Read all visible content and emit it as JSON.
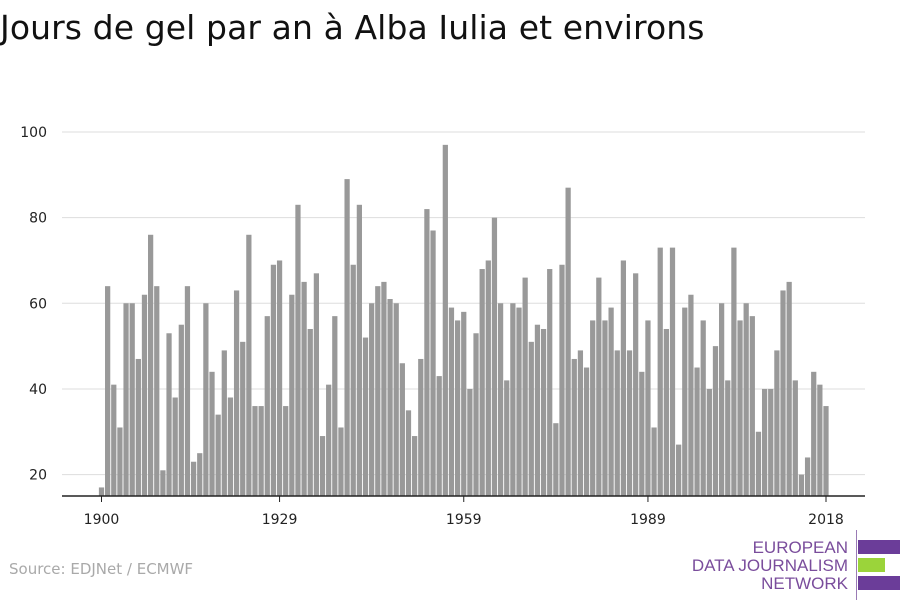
{
  "source": "Source: EDJNet / ECMWF",
  "brand": {
    "lines": [
      "EUROPEAN",
      "DATA JOURNALISM",
      "NETWORK"
    ],
    "colors": {
      "text": "#7a4d9c",
      "primary": "#6b3d99",
      "accent": "#9bd43a"
    }
  },
  "colors": {
    "bar": "#999999",
    "grid": "#dddddd",
    "axis": "#222222",
    "tick_text": "#222222"
  },
  "chart_data": {
    "type": "bar",
    "title": "Jours de gel par an à Alba Iulia et environs",
    "xlabel": "",
    "ylabel": "",
    "ylim": [
      15,
      100
    ],
    "yticks": [
      20,
      40,
      60,
      80,
      100
    ],
    "xlim": [
      1899,
      2020
    ],
    "xticks": [
      1900,
      1929,
      1959,
      1989,
      2018
    ],
    "grid": true,
    "legend": "none",
    "x": [
      1900,
      1901,
      1902,
      1903,
      1904,
      1905,
      1906,
      1907,
      1908,
      1909,
      1910,
      1911,
      1912,
      1913,
      1914,
      1915,
      1916,
      1917,
      1918,
      1919,
      1920,
      1921,
      1922,
      1923,
      1924,
      1925,
      1926,
      1927,
      1928,
      1929,
      1930,
      1931,
      1932,
      1933,
      1934,
      1935,
      1936,
      1937,
      1938,
      1939,
      1940,
      1941,
      1942,
      1943,
      1944,
      1945,
      1946,
      1947,
      1948,
      1949,
      1950,
      1951,
      1952,
      1953,
      1954,
      1955,
      1956,
      1957,
      1958,
      1959,
      1960,
      1961,
      1962,
      1963,
      1964,
      1965,
      1966,
      1967,
      1968,
      1969,
      1970,
      1971,
      1972,
      1973,
      1974,
      1975,
      1976,
      1977,
      1978,
      1979,
      1980,
      1981,
      1982,
      1983,
      1984,
      1985,
      1986,
      1987,
      1988,
      1989,
      1990,
      1991,
      1992,
      1993,
      1994,
      1995,
      1996,
      1997,
      1998,
      1999,
      2000,
      2001,
      2002,
      2003,
      2004,
      2005,
      2006,
      2007,
      2008,
      2009,
      2010,
      2011,
      2012,
      2013,
      2014,
      2015,
      2016,
      2017,
      2018
    ],
    "values": [
      17,
      64,
      41,
      31,
      60,
      60,
      47,
      62,
      76,
      64,
      21,
      53,
      38,
      55,
      64,
      23,
      25,
      60,
      44,
      34,
      49,
      38,
      63,
      51,
      76,
      36,
      36,
      57,
      69,
      70,
      36,
      62,
      83,
      65,
      54,
      67,
      29,
      41,
      57,
      31,
      89,
      69,
      83,
      52,
      60,
      64,
      65,
      61,
      60,
      46,
      35,
      29,
      47,
      82,
      77,
      43,
      97,
      59,
      56,
      58,
      40,
      53,
      68,
      70,
      80,
      60,
      42,
      60,
      59,
      66,
      51,
      55,
      54,
      68,
      32,
      69,
      87,
      47,
      49,
      45,
      56,
      66,
      56,
      59,
      49,
      70,
      49,
      67,
      44,
      56,
      31,
      73,
      54,
      73,
      27,
      59,
      62,
      45,
      56,
      40,
      50,
      60,
      42,
      73,
      56,
      60,
      57,
      30,
      40,
      40,
      49,
      63,
      65,
      42,
      20,
      24,
      44,
      41,
      36
    ]
  }
}
